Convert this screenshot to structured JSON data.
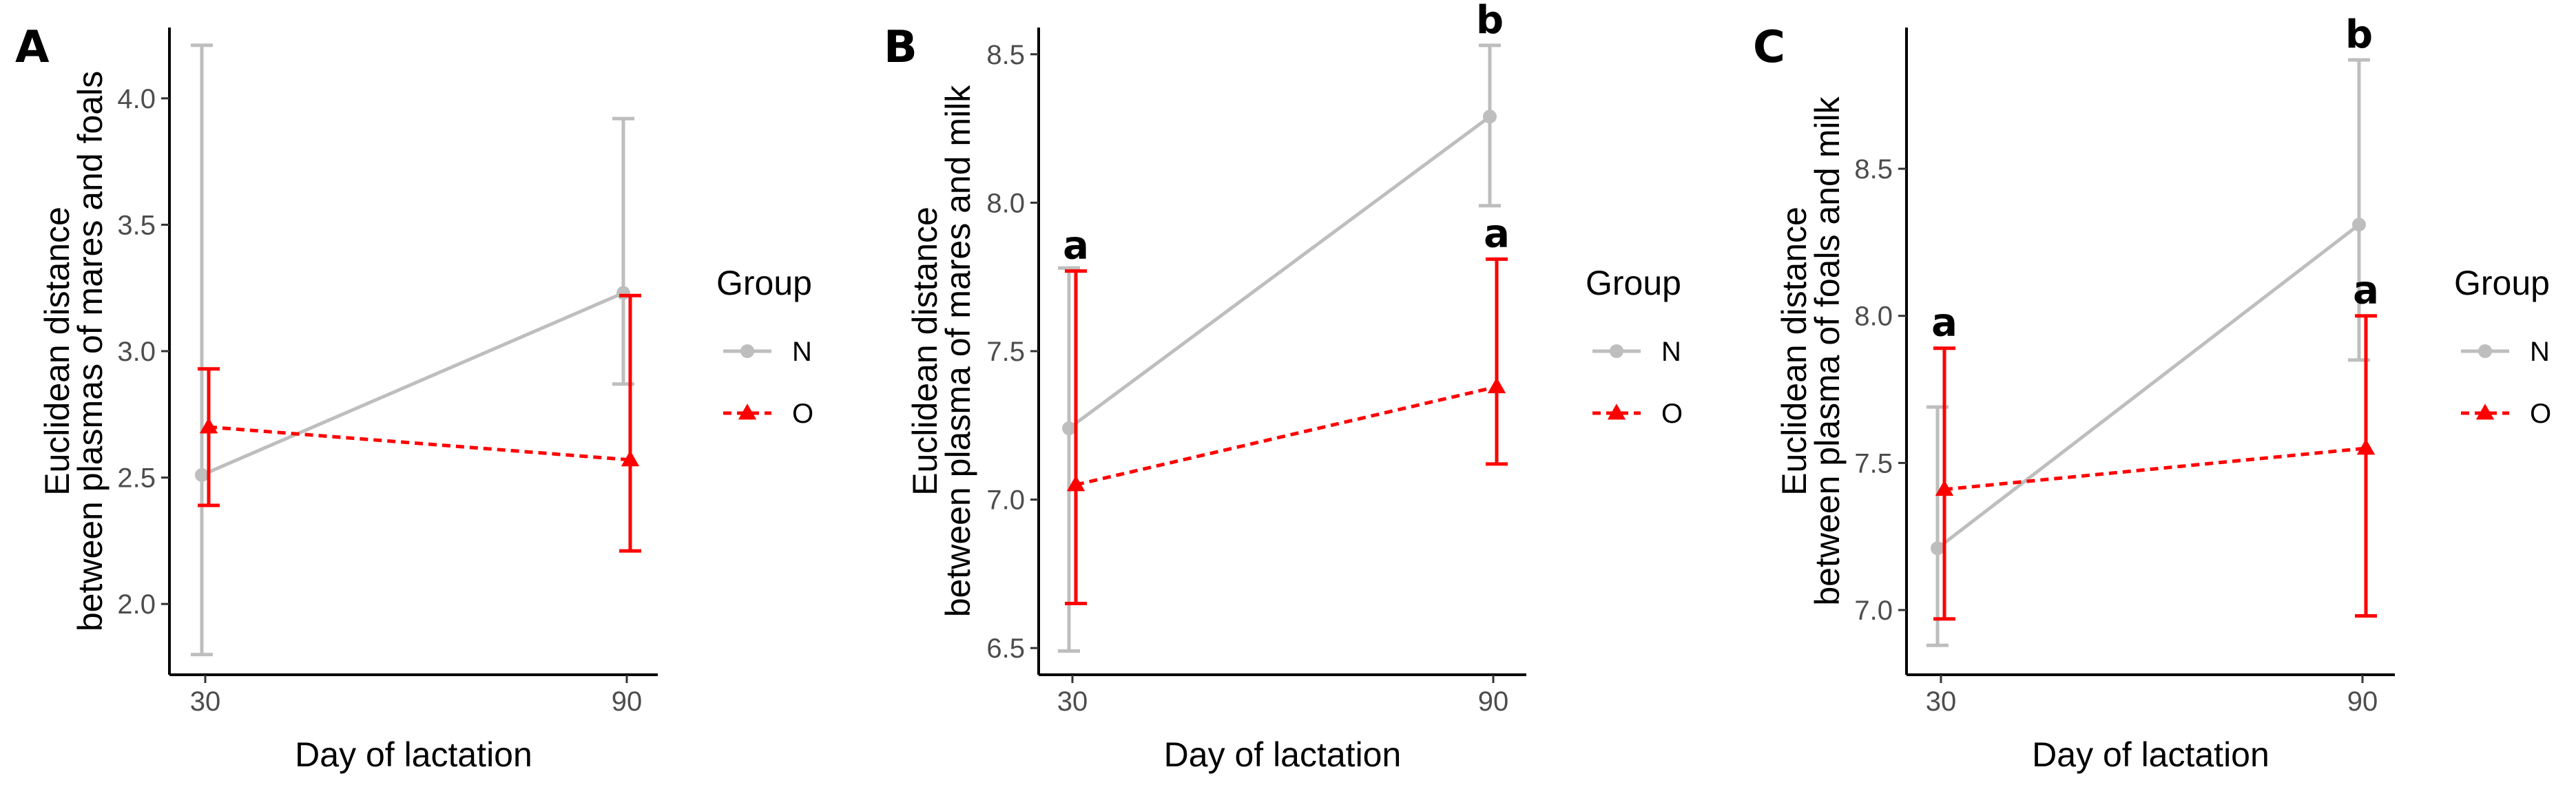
{
  "chart_data": [
    {
      "type": "line",
      "panel": "A",
      "xlabel": "Day of lactation",
      "ylabel_lines": [
        "Euclidean distance",
        "between plasmas of mares and foals"
      ],
      "x": [
        30,
        90
      ],
      "x_tick_labels": [
        "30",
        "90"
      ],
      "ylim": [
        1.72,
        4.28
      ],
      "y_ticks": [
        2.0,
        2.5,
        3.0,
        3.5,
        4.0
      ],
      "y_tick_labels": [
        "2.0",
        "2.5",
        "3.0",
        "3.5",
        "4.0"
      ],
      "series": [
        {
          "name": "N",
          "color": "#bebebe",
          "marker": "circle",
          "line": "solid",
          "values": [
            2.51,
            3.23
          ],
          "upper": [
            4.21,
            3.92
          ],
          "lower": [
            1.8,
            2.87
          ],
          "letters": [
            "",
            ""
          ]
        },
        {
          "name": "O",
          "color": "#ff0000",
          "marker": "triangle",
          "line": "dashed",
          "values": [
            2.7,
            2.57
          ],
          "upper": [
            2.93,
            3.22
          ],
          "lower": [
            2.39,
            2.21
          ],
          "letters": [
            "",
            ""
          ]
        }
      ],
      "legend": {
        "title": "Group",
        "entries": [
          "N",
          "O"
        ]
      }
    },
    {
      "type": "line",
      "panel": "B",
      "xlabel": "Day of lactation",
      "ylabel_lines": [
        "Euclidean distance",
        "between plasma of mares and milk"
      ],
      "x": [
        30,
        90
      ],
      "x_tick_labels": [
        "30",
        "90"
      ],
      "ylim": [
        6.41,
        8.59
      ],
      "y_ticks": [
        6.5,
        7.0,
        7.5,
        8.0,
        8.5
      ],
      "y_tick_labels": [
        "6.5",
        "7.0",
        "7.5",
        "8.0",
        "8.5"
      ],
      "series": [
        {
          "name": "N",
          "color": "#bebebe",
          "marker": "circle",
          "line": "solid",
          "values": [
            7.24,
            8.29
          ],
          "upper": [
            7.78,
            8.53
          ],
          "lower": [
            6.49,
            7.99
          ],
          "letters": [
            "",
            "b"
          ]
        },
        {
          "name": "O",
          "color": "#ff0000",
          "marker": "triangle",
          "line": "dashed",
          "values": [
            7.05,
            7.38
          ],
          "upper": [
            7.77,
            7.81
          ],
          "lower": [
            6.65,
            7.12
          ],
          "letters": [
            "a",
            "a"
          ]
        }
      ],
      "legend": {
        "title": "Group",
        "entries": [
          "N",
          "O"
        ]
      }
    },
    {
      "type": "line",
      "panel": "C",
      "xlabel": "Day of lactation",
      "ylabel_lines": [
        "Euclidean distance",
        "between plasma of foals and milk"
      ],
      "x": [
        30,
        90
      ],
      "x_tick_labels": [
        "30",
        "90"
      ],
      "ylim": [
        6.78,
        8.98
      ],
      "y_ticks": [
        7.0,
        7.5,
        8.0,
        8.5
      ],
      "y_tick_labels": [
        "7.0",
        "7.5",
        "8.0",
        "8.5"
      ],
      "series": [
        {
          "name": "N",
          "color": "#bebebe",
          "marker": "circle",
          "line": "solid",
          "values": [
            7.21,
            8.31
          ],
          "upper": [
            7.69,
            8.87
          ],
          "lower": [
            6.88,
            7.85
          ],
          "letters": [
            "",
            "b"
          ]
        },
        {
          "name": "O",
          "color": "#ff0000",
          "marker": "triangle",
          "line": "dashed",
          "values": [
            7.41,
            7.55
          ],
          "upper": [
            7.89,
            8.0
          ],
          "lower": [
            6.97,
            6.98
          ],
          "letters": [
            "a",
            "a"
          ]
        }
      ],
      "legend": {
        "title": "Group",
        "entries": [
          "N",
          "O"
        ]
      }
    }
  ]
}
